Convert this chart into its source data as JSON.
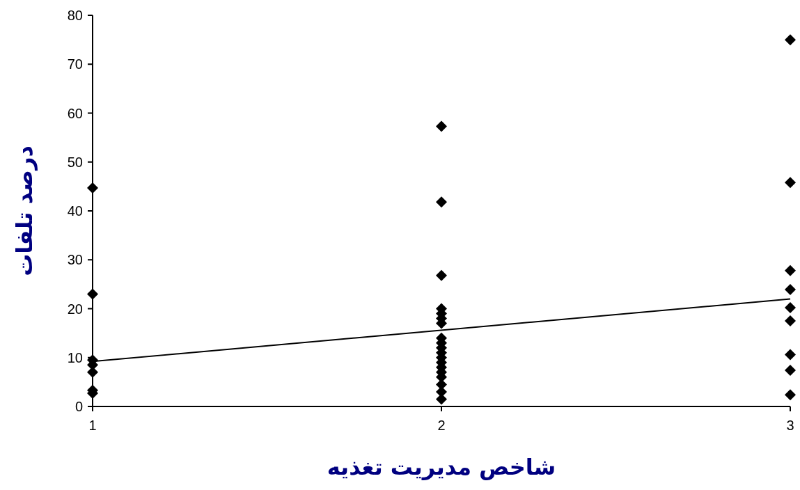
{
  "chart_data": {
    "type": "scatter",
    "xlabel": "شاخص مدیریت تغذیه",
    "ylabel": "درصد تلفات",
    "xlim": [
      1,
      3
    ],
    "xticks": [
      1,
      2,
      3
    ],
    "ylim": [
      0,
      80
    ],
    "yticks": [
      0,
      10,
      20,
      30,
      40,
      50,
      60,
      70,
      80
    ],
    "grid": false,
    "series": [
      {
        "color": "#000000",
        "marker": "diamond",
        "x": [
          1,
          1,
          1,
          1,
          1,
          1,
          1,
          2,
          2,
          2,
          2,
          2,
          2,
          2,
          2,
          2,
          2,
          2,
          2,
          2,
          2,
          2,
          2,
          2,
          2,
          2,
          3,
          3,
          3,
          3,
          3,
          3,
          3,
          3,
          3
        ],
        "values": [
          44.7,
          23,
          9.5,
          8.5,
          7,
          3.3,
          2.7,
          57.3,
          41.8,
          26.8,
          20,
          19,
          18,
          17,
          14,
          13,
          12,
          11,
          10,
          9,
          8,
          7,
          6,
          4.5,
          3,
          1.5,
          75,
          45.8,
          27.8,
          23.9,
          20.2,
          17.5,
          10.6,
          7.4,
          2.4
        ]
      },
      {
        "type": "line",
        "color": "#000000",
        "marker": "none",
        "x": [
          1,
          3
        ],
        "values": [
          9.2,
          22
        ],
        "line_style": "solid"
      }
    ]
  }
}
